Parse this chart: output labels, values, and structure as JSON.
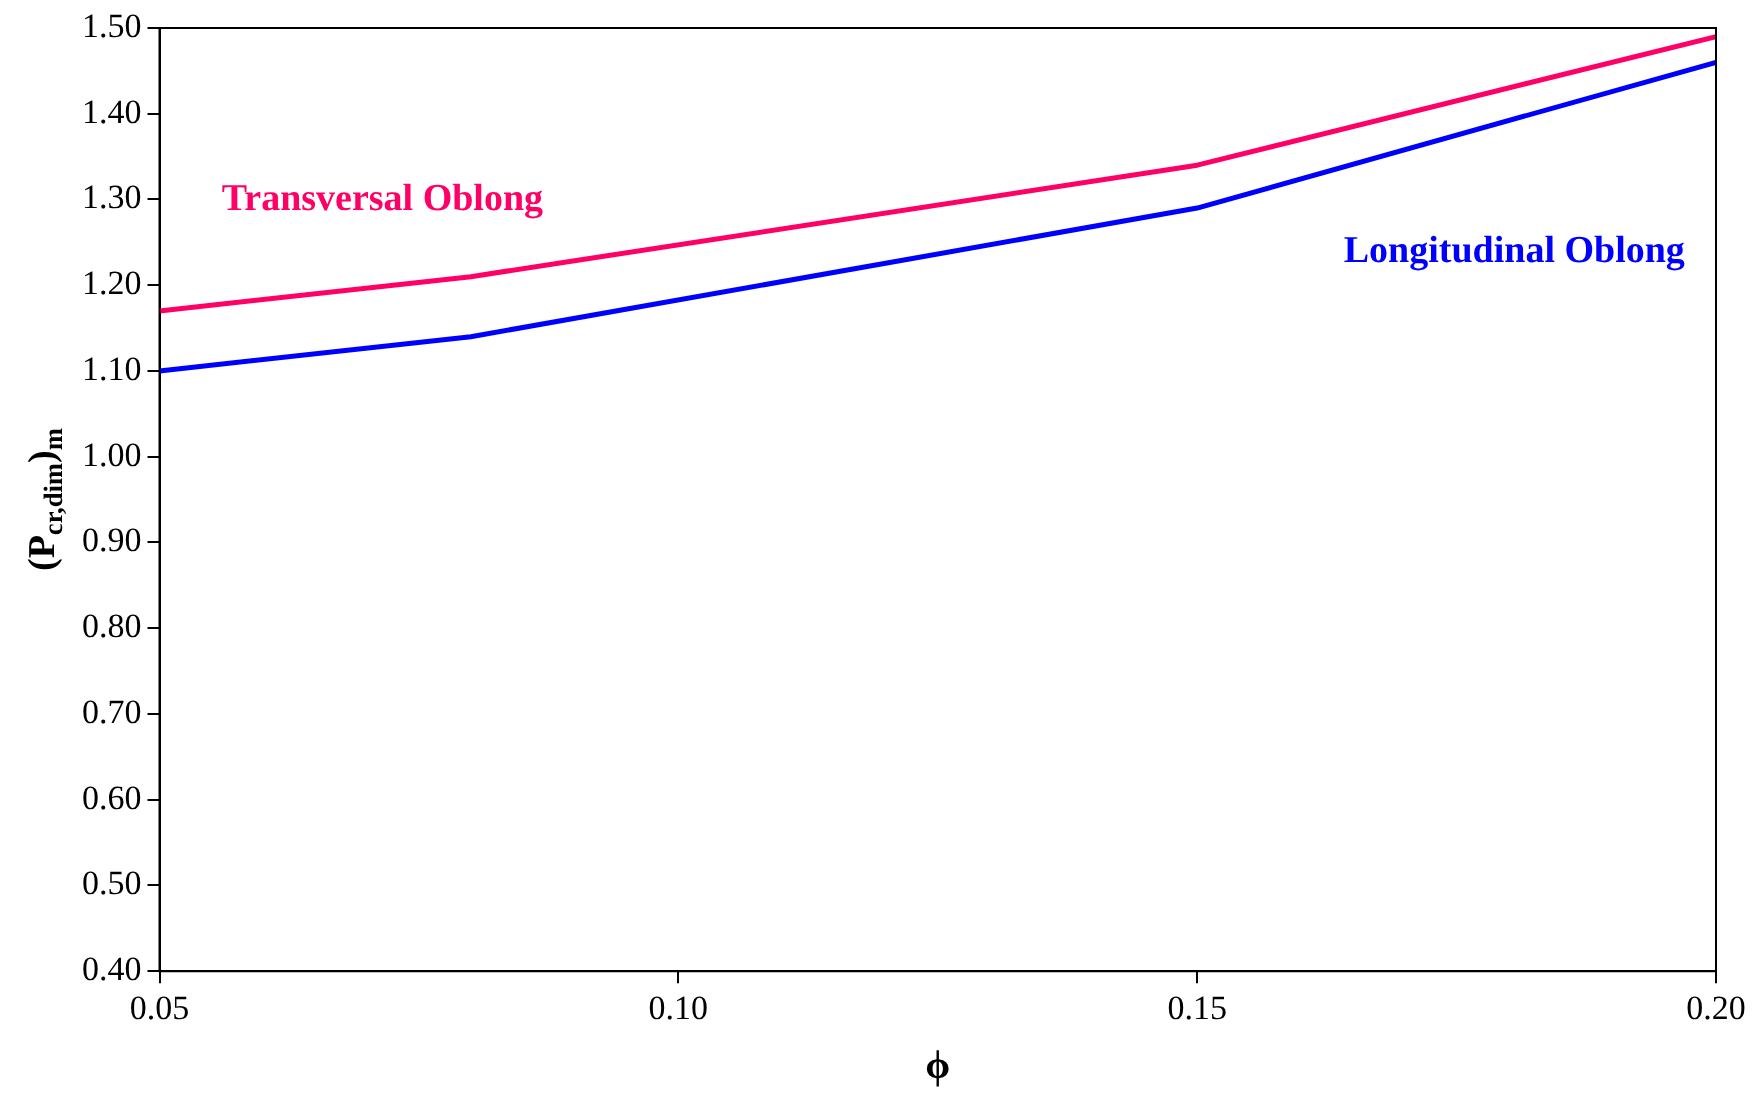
{
  "chart_data": {
    "type": "line",
    "xlabel": "ϕ",
    "ylabel": "(P$_{cr,dim}$)$_{m}$",
    "xlim": [
      0.05,
      0.2
    ],
    "xticks": [
      {
        "value": 0.05,
        "label": "0.05"
      },
      {
        "value": 0.1,
        "label": "0.10"
      },
      {
        "value": 0.15,
        "label": "0.15"
      },
      {
        "value": 0.2,
        "label": "0.20"
      }
    ],
    "ylim": [
      0.4,
      1.5
    ],
    "yticks": [
      {
        "value": 0.4,
        "label": "0.40"
      },
      {
        "value": 0.5,
        "label": "0.50"
      },
      {
        "value": 0.6,
        "label": "0.60"
      },
      {
        "value": 0.7,
        "label": "0.70"
      },
      {
        "value": 0.8,
        "label": "0.80"
      },
      {
        "value": 0.9,
        "label": "0.90"
      },
      {
        "value": 1.0,
        "label": "1.00"
      },
      {
        "value": 1.1,
        "label": "1.10"
      },
      {
        "value": 1.2,
        "label": "1.20"
      },
      {
        "value": 1.3,
        "label": "1.30"
      },
      {
        "value": 1.4,
        "label": "1.40"
      },
      {
        "value": 1.5,
        "label": "1.50"
      }
    ],
    "x": [
      0.05,
      0.08,
      0.15,
      0.2
    ],
    "series": [
      {
        "name": "Transversal Oblong",
        "color": "#ff0066",
        "values": [
          1.17,
          1.21,
          1.34,
          1.49
        ]
      },
      {
        "name": "Longitudinal Oblong",
        "color": "#0000ff",
        "values": [
          1.1,
          1.14,
          1.29,
          1.46
        ]
      }
    ],
    "grid": false,
    "legend": false,
    "marker": "none",
    "line_style": "solid"
  }
}
